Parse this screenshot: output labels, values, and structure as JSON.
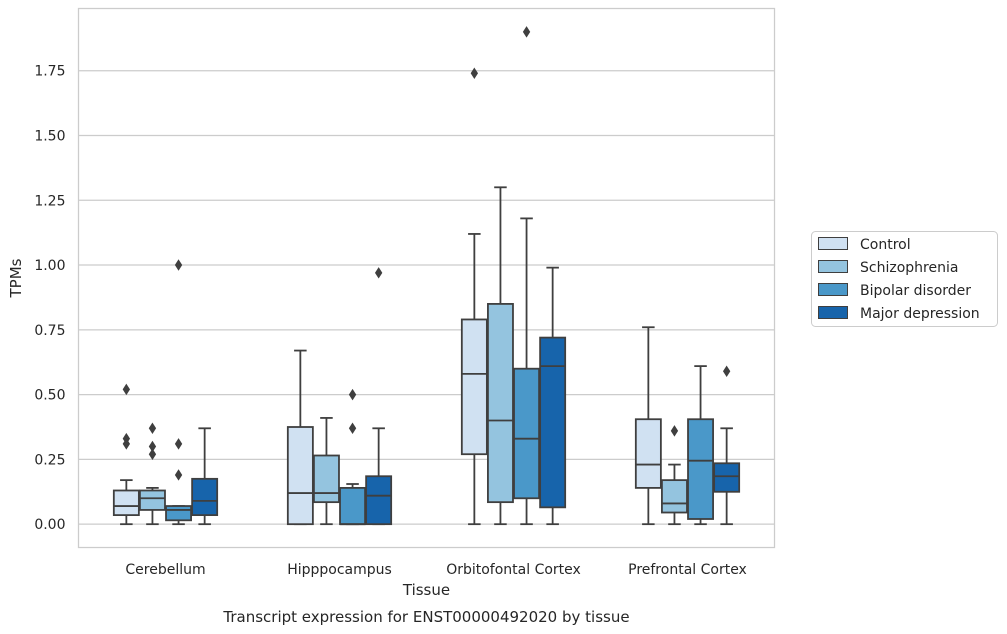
{
  "chart_data": {
    "type": "boxplot",
    "title": "",
    "caption": "Transcript expression for ENST00000492020 by tissue",
    "xlabel": "Tissue",
    "ylabel": "TPMs",
    "ylim": [
      -0.09,
      1.99
    ],
    "yticks": [
      "0.00",
      "0.25",
      "0.50",
      "0.75",
      "1.00",
      "1.25",
      "1.50",
      "1.75"
    ],
    "ytick_values": [
      0,
      0.25,
      0.5,
      0.75,
      1.0,
      1.25,
      1.5,
      1.75
    ],
    "grid": "horizontal",
    "legend_position": "right",
    "categories": [
      "Cerebellum",
      "Hipppocampus",
      "Orbitofontal Cortex",
      "Prefrontal Cortex"
    ],
    "series": [
      {
        "name": "Control",
        "color": "#d0e1f2",
        "boxes": [
          {
            "whisker_low": 0.0,
            "q1": 0.035,
            "median": 0.07,
            "q3": 0.13,
            "whisker_high": 0.17,
            "outliers": [
              0.52,
              0.33,
              0.31
            ]
          },
          {
            "whisker_low": 0.0,
            "q1": 0.0,
            "median": 0.12,
            "q3": 0.375,
            "whisker_high": 0.67,
            "outliers": []
          },
          {
            "whisker_low": 0.0,
            "q1": 0.27,
            "median": 0.58,
            "q3": 0.79,
            "whisker_high": 1.12,
            "outliers": [
              1.74
            ]
          },
          {
            "whisker_low": 0.0,
            "q1": 0.14,
            "median": 0.23,
            "q3": 0.405,
            "whisker_high": 0.76,
            "outliers": []
          }
        ]
      },
      {
        "name": "Schizophrenia",
        "color": "#94c4df",
        "boxes": [
          {
            "whisker_low": 0.0,
            "q1": 0.055,
            "median": 0.1,
            "q3": 0.13,
            "whisker_high": 0.14,
            "outliers": [
              0.37,
              0.3,
              0.27
            ]
          },
          {
            "whisker_low": 0.0,
            "q1": 0.085,
            "median": 0.12,
            "q3": 0.265,
            "whisker_high": 0.41,
            "outliers": []
          },
          {
            "whisker_low": 0.0,
            "q1": 0.085,
            "median": 0.4,
            "q3": 0.85,
            "whisker_high": 1.3,
            "outliers": []
          },
          {
            "whisker_low": 0.0,
            "q1": 0.045,
            "median": 0.08,
            "q3": 0.17,
            "whisker_high": 0.23,
            "outliers": [
              0.36
            ]
          }
        ]
      },
      {
        "name": "Bipolar disorder",
        "color": "#4a98c9",
        "boxes": [
          {
            "whisker_low": 0.0,
            "q1": 0.015,
            "median": 0.055,
            "q3": 0.07,
            "whisker_high": 0.07,
            "outliers": [
              1.0,
              0.31,
              0.19
            ]
          },
          {
            "whisker_low": 0.0,
            "q1": 0.0,
            "median": 0.0,
            "q3": 0.14,
            "whisker_high": 0.155,
            "outliers": [
              0.5,
              0.37
            ]
          },
          {
            "whisker_low": 0.0,
            "q1": 0.1,
            "median": 0.33,
            "q3": 0.6,
            "whisker_high": 1.18,
            "outliers": [
              1.9
            ]
          },
          {
            "whisker_low": 0.0,
            "q1": 0.02,
            "median": 0.245,
            "q3": 0.405,
            "whisker_high": 0.61,
            "outliers": []
          }
        ]
      },
      {
        "name": "Major depression",
        "color": "#1764ab",
        "boxes": [
          {
            "whisker_low": 0.0,
            "q1": 0.035,
            "median": 0.09,
            "q3": 0.175,
            "whisker_high": 0.37,
            "outliers": []
          },
          {
            "whisker_low": 0.0,
            "q1": 0.0,
            "median": 0.11,
            "q3": 0.185,
            "whisker_high": 0.37,
            "outliers": [
              0.97
            ]
          },
          {
            "whisker_low": 0.0,
            "q1": 0.065,
            "median": 0.61,
            "q3": 0.72,
            "whisker_high": 0.99,
            "outliers": []
          },
          {
            "whisker_low": 0.0,
            "q1": 0.125,
            "median": 0.185,
            "q3": 0.235,
            "whisker_high": 0.37,
            "outliers": [
              0.59
            ]
          }
        ]
      }
    ]
  }
}
